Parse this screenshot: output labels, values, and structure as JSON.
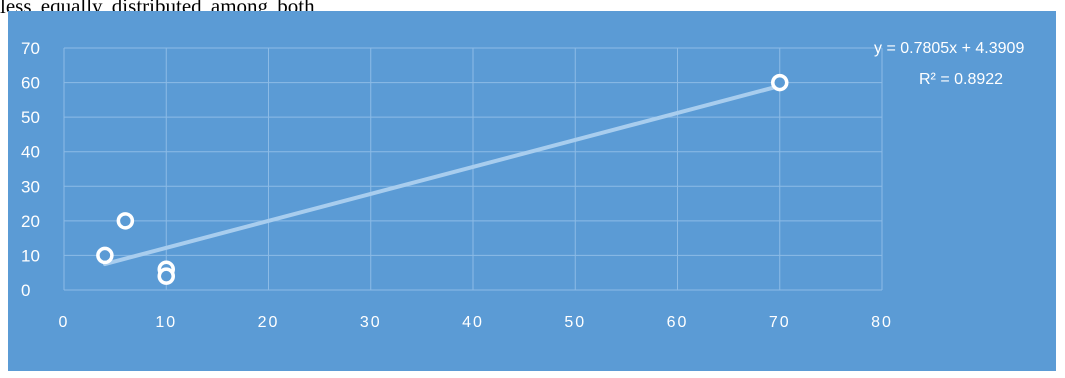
{
  "document": {
    "text_above": "less  equally  distributed  among  both"
  },
  "chart_data": {
    "type": "scatter",
    "title": "",
    "xlabel": "",
    "ylabel": "",
    "xlim": [
      0,
      80
    ],
    "ylim": [
      0,
      70
    ],
    "x_ticks": [
      0,
      10,
      20,
      30,
      40,
      50,
      60,
      70,
      80
    ],
    "y_ticks": [
      0,
      10,
      20,
      30,
      40,
      50,
      60,
      70
    ],
    "grid": true,
    "series": [
      {
        "points": [
          {
            "x": 4,
            "y": 10
          },
          {
            "x": 6,
            "y": 20
          },
          {
            "x": 10,
            "y": 6
          },
          {
            "x": 10,
            "y": 4
          },
          {
            "x": 70,
            "y": 60
          }
        ]
      }
    ],
    "trendline": {
      "type": "linear",
      "slope": 0.7805,
      "intercept": 4.3909,
      "x_range": [
        4,
        70
      ],
      "equation_label": "y = 0.7805x + 4.3909",
      "r2_label": "R² = 0.8922"
    },
    "colors": {
      "background": "#5b9bd5",
      "grid": "#8cbbe6",
      "text": "#ffffff",
      "trendline": "#a8cdee",
      "marker_stroke": "#ffffff",
      "marker_fill": "#5b9bd5"
    }
  }
}
